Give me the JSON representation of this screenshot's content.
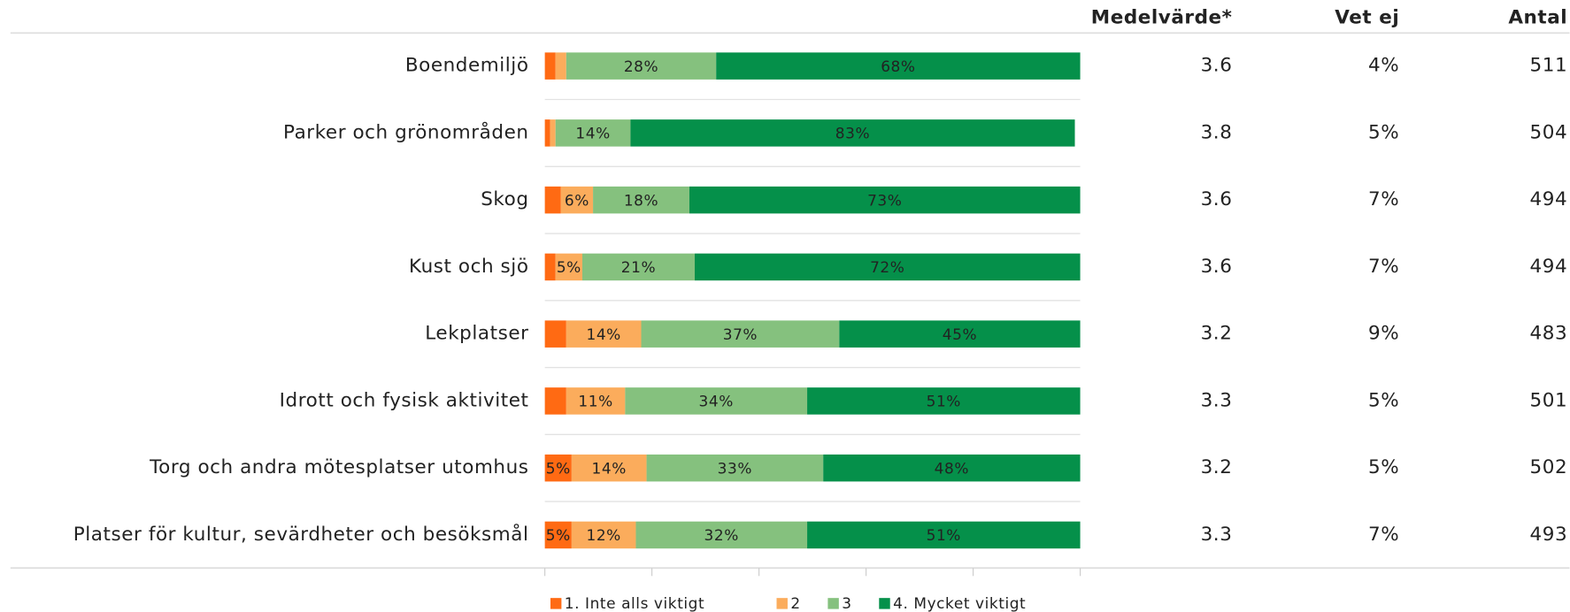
{
  "chart_data": {
    "type": "stacked-bar-horizontal",
    "categories": [
      "Boendemiljö",
      "Parker och grönområden",
      "Skog",
      "Kust och sjö",
      "Lekplatser",
      "Idrott och fysisk aktivitet",
      "Torg och andra mötesplatser utomhus",
      "Platser för kultur, sevärdheter och besöksmål"
    ],
    "series": [
      {
        "name": "1. Inte alls viktigt",
        "color": "#ff6a13",
        "values": [
          2,
          1,
          3,
          2,
          4,
          4,
          5,
          5
        ],
        "value_labels": [
          null,
          null,
          null,
          null,
          null,
          null,
          "5%",
          "5%"
        ]
      },
      {
        "name": "2",
        "color": "#fbac5c",
        "values": [
          2,
          1,
          6,
          5,
          14,
          11,
          14,
          12
        ],
        "value_labels": [
          null,
          null,
          "6%",
          "5%",
          "14%",
          "11%",
          "14%",
          "12%"
        ]
      },
      {
        "name": "3",
        "color": "#85c17e",
        "values": [
          28,
          14,
          18,
          21,
          37,
          34,
          33,
          32
        ],
        "value_labels": [
          "28%",
          "14%",
          "18%",
          "21%",
          "37%",
          "34%",
          "33%",
          "32%"
        ]
      },
      {
        "name": "4. Mycket viktigt",
        "color": "#05904a",
        "values": [
          68,
          83,
          73,
          72,
          45,
          51,
          48,
          51
        ],
        "value_labels": [
          "68%",
          "83%",
          "73%",
          "72%",
          "45%",
          "51%",
          "48%",
          "51%"
        ]
      }
    ],
    "xlim": [
      0,
      100
    ],
    "xticks": [
      0,
      20,
      40,
      60,
      80,
      100
    ],
    "columns": [
      {
        "header": "Medelvärde*",
        "values": [
          3.6,
          3.8,
          3.6,
          3.6,
          3.2,
          3.3,
          3.2,
          3.3
        ]
      },
      {
        "header": "Vet ej",
        "values": [
          4,
          5,
          7,
          7,
          9,
          5,
          5,
          7
        ],
        "value_labels": [
          "4%",
          "5%",
          "7%",
          "7%",
          "9%",
          "5%",
          "5%",
          "7%"
        ]
      },
      {
        "header": "Antal",
        "values": [
          511,
          504,
          494,
          494,
          483,
          501,
          502,
          493
        ]
      }
    ],
    "legend": "bottom"
  }
}
